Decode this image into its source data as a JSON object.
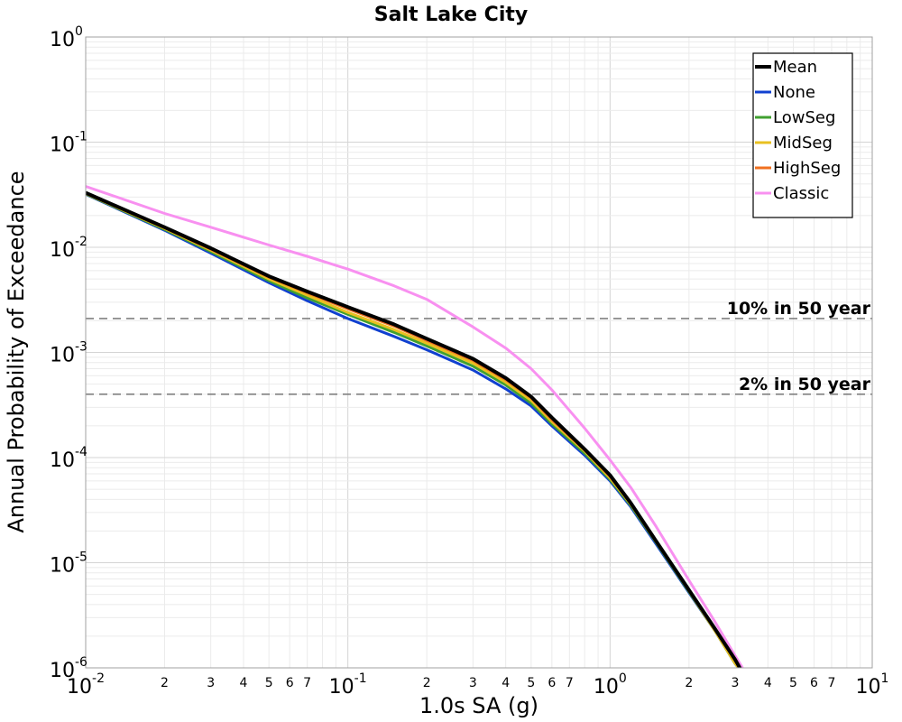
{
  "chart_data": {
    "type": "line",
    "title": "Salt Lake City",
    "xlabel": "1.0s SA (g)",
    "ylabel": "Annual Probability of Exceedance",
    "xscale": "log",
    "yscale": "log",
    "xlim": [
      0.01,
      10
    ],
    "ylim": [
      1e-06,
      1
    ],
    "grid": true,
    "legend_position": "top-right",
    "x_major_ticks": [
      {
        "base": "10",
        "exp": "-2"
      },
      {
        "base": "10",
        "exp": "-1"
      },
      {
        "base": "10",
        "exp": "0"
      },
      {
        "base": "10",
        "exp": "1"
      }
    ],
    "y_major_ticks": [
      {
        "base": "10",
        "exp": "-6"
      },
      {
        "base": "10",
        "exp": "-5"
      },
      {
        "base": "10",
        "exp": "-4"
      },
      {
        "base": "10",
        "exp": "-3"
      },
      {
        "base": "10",
        "exp": "-2"
      },
      {
        "base": "10",
        "exp": "-1"
      },
      {
        "base": "10",
        "exp": "0"
      }
    ],
    "x_minor_tick_labels": [
      "2",
      "3",
      "4",
      "5",
      "6",
      "7"
    ],
    "reference_lines": [
      {
        "label": "10% in 50 year",
        "y": 0.0021
      },
      {
        "label": "2% in 50 year",
        "y": 0.0004
      }
    ],
    "series": [
      {
        "name": "Mean",
        "color": "#000000",
        "width": 4,
        "x": [
          0.01,
          0.02,
          0.03,
          0.05,
          0.07,
          0.1,
          0.15,
          0.2,
          0.3,
          0.4,
          0.5,
          0.6,
          0.8,
          1.0,
          1.2,
          1.5,
          2.0,
          2.5,
          3.0,
          3.2
        ],
        "y": [
          0.033,
          0.0155,
          0.0098,
          0.0053,
          0.0038,
          0.0027,
          0.00185,
          0.00135,
          0.00087,
          0.00057,
          0.00038,
          0.00024,
          0.00012,
          6.8e-05,
          3.7e-05,
          1.6e-05,
          5.5e-06,
          2.4e-06,
          1.2e-06,
          9e-07
        ]
      },
      {
        "name": "None",
        "color": "#1040d0",
        "width": 3,
        "x": [
          0.01,
          0.02,
          0.03,
          0.05,
          0.07,
          0.1,
          0.15,
          0.2,
          0.3,
          0.4,
          0.5,
          0.6,
          0.8,
          1.0,
          1.2,
          1.5,
          2.0,
          2.5,
          3.0,
          3.2
        ],
        "y": [
          0.032,
          0.0145,
          0.0088,
          0.0046,
          0.0031,
          0.0021,
          0.00142,
          0.00106,
          0.00068,
          0.00045,
          0.00031,
          0.0002,
          0.000105,
          6e-05,
          3.4e-05,
          1.5e-05,
          5.2e-06,
          2.3e-06,
          1.1e-06,
          9e-07
        ]
      },
      {
        "name": "LowSeg",
        "color": "#40a030",
        "width": 3,
        "x": [
          0.01,
          0.02,
          0.03,
          0.05,
          0.07,
          0.1,
          0.15,
          0.2,
          0.3,
          0.4,
          0.5,
          0.6,
          0.8,
          1.0,
          1.2,
          1.5,
          2.0,
          2.5,
          3.0,
          3.2
        ],
        "y": [
          0.0322,
          0.0148,
          0.0091,
          0.0048,
          0.0033,
          0.0023,
          0.00155,
          0.00115,
          0.00074,
          0.00049,
          0.00033,
          0.00021,
          0.00011,
          6.2e-05,
          3.5e-05,
          1.55e-05,
          5.3e-06,
          2.3e-06,
          1.1e-06,
          9e-07
        ]
      },
      {
        "name": "MidSeg",
        "color": "#e8c020",
        "width": 3,
        "x": [
          0.01,
          0.02,
          0.03,
          0.05,
          0.07,
          0.1,
          0.15,
          0.2,
          0.3,
          0.4,
          0.5,
          0.6,
          0.8,
          1.0,
          1.2,
          1.5,
          2.0,
          2.5,
          3.0,
          3.2
        ],
        "y": [
          0.0325,
          0.0151,
          0.0094,
          0.005,
          0.0035,
          0.0024,
          0.00165,
          0.00122,
          0.00079,
          0.00052,
          0.00035,
          0.00022,
          0.000115,
          6.4e-05,
          3.6e-05,
          1.58e-05,
          5.4e-06,
          2.3e-06,
          1.1e-06,
          9e-07
        ]
      },
      {
        "name": "HighSeg",
        "color": "#f07020",
        "width": 3,
        "x": [
          0.01,
          0.02,
          0.03,
          0.05,
          0.07,
          0.1,
          0.15,
          0.2,
          0.3,
          0.4,
          0.5,
          0.6,
          0.8,
          1.0,
          1.2,
          1.5,
          2.0,
          2.5,
          3.0,
          3.2
        ],
        "y": [
          0.0327,
          0.0153,
          0.0096,
          0.0052,
          0.0037,
          0.0026,
          0.00178,
          0.0013,
          0.00084,
          0.00055,
          0.00037,
          0.00023,
          0.000118,
          6.6e-05,
          3.65e-05,
          1.59e-05,
          5.5e-06,
          2.4e-06,
          1.2e-06,
          9e-07
        ]
      },
      {
        "name": "Classic",
        "color": "#f890f0",
        "width": 3,
        "x": [
          0.01,
          0.02,
          0.03,
          0.05,
          0.07,
          0.1,
          0.15,
          0.2,
          0.3,
          0.4,
          0.5,
          0.6,
          0.8,
          1.0,
          1.2,
          1.5,
          2.0,
          2.5,
          3.0,
          3.2
        ],
        "y": [
          0.038,
          0.021,
          0.0155,
          0.0105,
          0.0082,
          0.0062,
          0.0043,
          0.0032,
          0.00175,
          0.0011,
          0.0007,
          0.00044,
          0.00019,
          9.5e-05,
          5.2e-05,
          2.2e-05,
          6.8e-06,
          2.8e-06,
          1.3e-06,
          1e-06
        ]
      }
    ]
  }
}
